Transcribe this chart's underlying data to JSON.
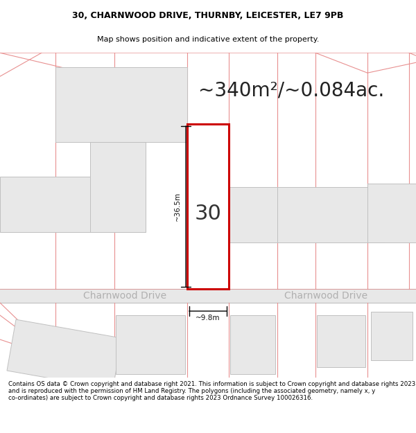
{
  "title_line1": "30, CHARNWOOD DRIVE, THURNBY, LEICESTER, LE7 9PB",
  "title_line2": "Map shows position and indicative extent of the property.",
  "area_text": "~340m²/~0.084ac.",
  "property_number": "30",
  "width_label": "~9.8m",
  "height_label": "~36.5m",
  "street_name": "Charnwood Drive",
  "footer_text": "Contains OS data © Crown copyright and database right 2021. This information is subject to Crown copyright and database rights 2023 and is reproduced with the permission of HM Land Registry. The polygons (including the associated geometry, namely x, y co-ordinates) are subject to Crown copyright and database rights 2023 Ordnance Survey 100026316.",
  "plot_outline_color": "#cc0000",
  "plot_fill_color": "#ffffff",
  "building_fill_color": "#e8e8e8",
  "building_outline_color": "#c0c0c0",
  "plot_line_color": "#e89090",
  "dim_line_color": "#000000",
  "road_fill": "#e8e8e8",
  "road_line": "#c0c0c0",
  "map_bg": "#fafafa",
  "title_fontsize": 9,
  "subtitle_fontsize": 8,
  "area_fontsize": 20,
  "property_num_fontsize": 22,
  "street_fontsize": 10,
  "footer_fontsize": 6.2,
  "dim_fontsize": 7.5
}
